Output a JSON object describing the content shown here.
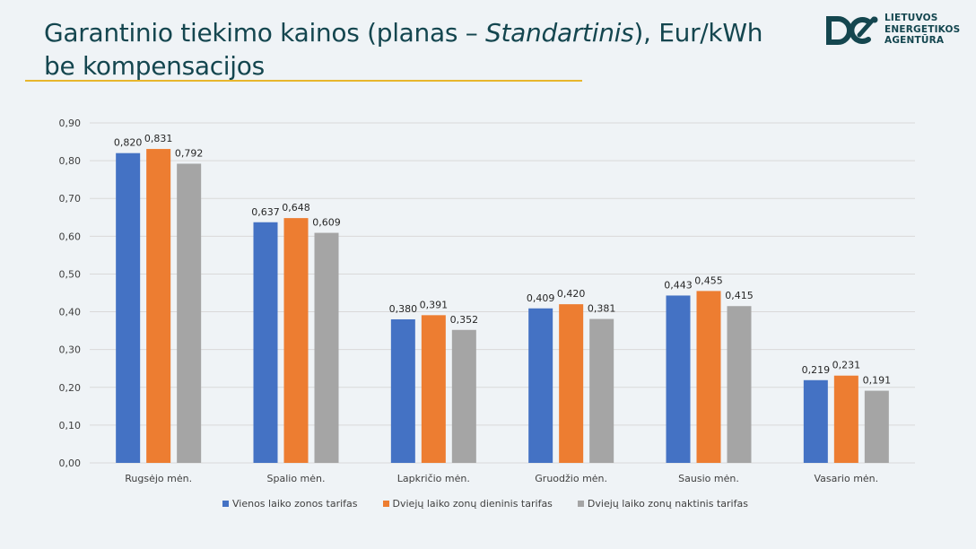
{
  "header": {
    "title_part1": "Garantinio tiekimo kainos (planas – ",
    "title_italic": "Standartinis",
    "title_part2": "), Eur/kWh be kompensacijos"
  },
  "logo": {
    "line1": "LIETUVOS",
    "line2": "ENERGETIKOS",
    "line3": "AGENTŪRA",
    "color": "#14464f"
  },
  "chart_data": {
    "type": "bar",
    "categories": [
      "Rugsėjo mėn.",
      "Spalio mėn.",
      "Lapkričio mėn.",
      "Gruodžio mėn.",
      "Sausio mėn.",
      "Vasario mėn."
    ],
    "series": [
      {
        "name": "Vienos laiko zonos tarifas",
        "values": [
          0.82,
          0.637,
          0.38,
          0.409,
          0.443,
          0.219
        ],
        "labels": [
          "0,820",
          "0,637",
          "0,380",
          "0,409",
          "0,443",
          "0,219"
        ],
        "color": "#4472c4"
      },
      {
        "name": "Dviejų laiko zonų dieninis tarifas",
        "values": [
          0.831,
          0.648,
          0.391,
          0.42,
          0.455,
          0.231
        ],
        "labels": [
          "0,831",
          "0,648",
          "0,391",
          "0,420",
          "0,455",
          "0,231"
        ],
        "color": "#ed7d31"
      },
      {
        "name": "Dviejų laiko zonų naktinis tarifas",
        "values": [
          0.792,
          0.609,
          0.352,
          0.381,
          0.415,
          0.191
        ],
        "labels": [
          "0,792",
          "0,609",
          "0,352",
          "0,381",
          "0,415",
          "0,191"
        ],
        "color": "#a5a5a5"
      }
    ],
    "yticks": [
      "0,00",
      "0,10",
      "0,20",
      "0,30",
      "0,40",
      "0,50",
      "0,60",
      "0,70",
      "0,80",
      "0,90"
    ],
    "ylim": [
      0,
      0.9
    ],
    "grid": true,
    "legend_position": "bottom"
  }
}
